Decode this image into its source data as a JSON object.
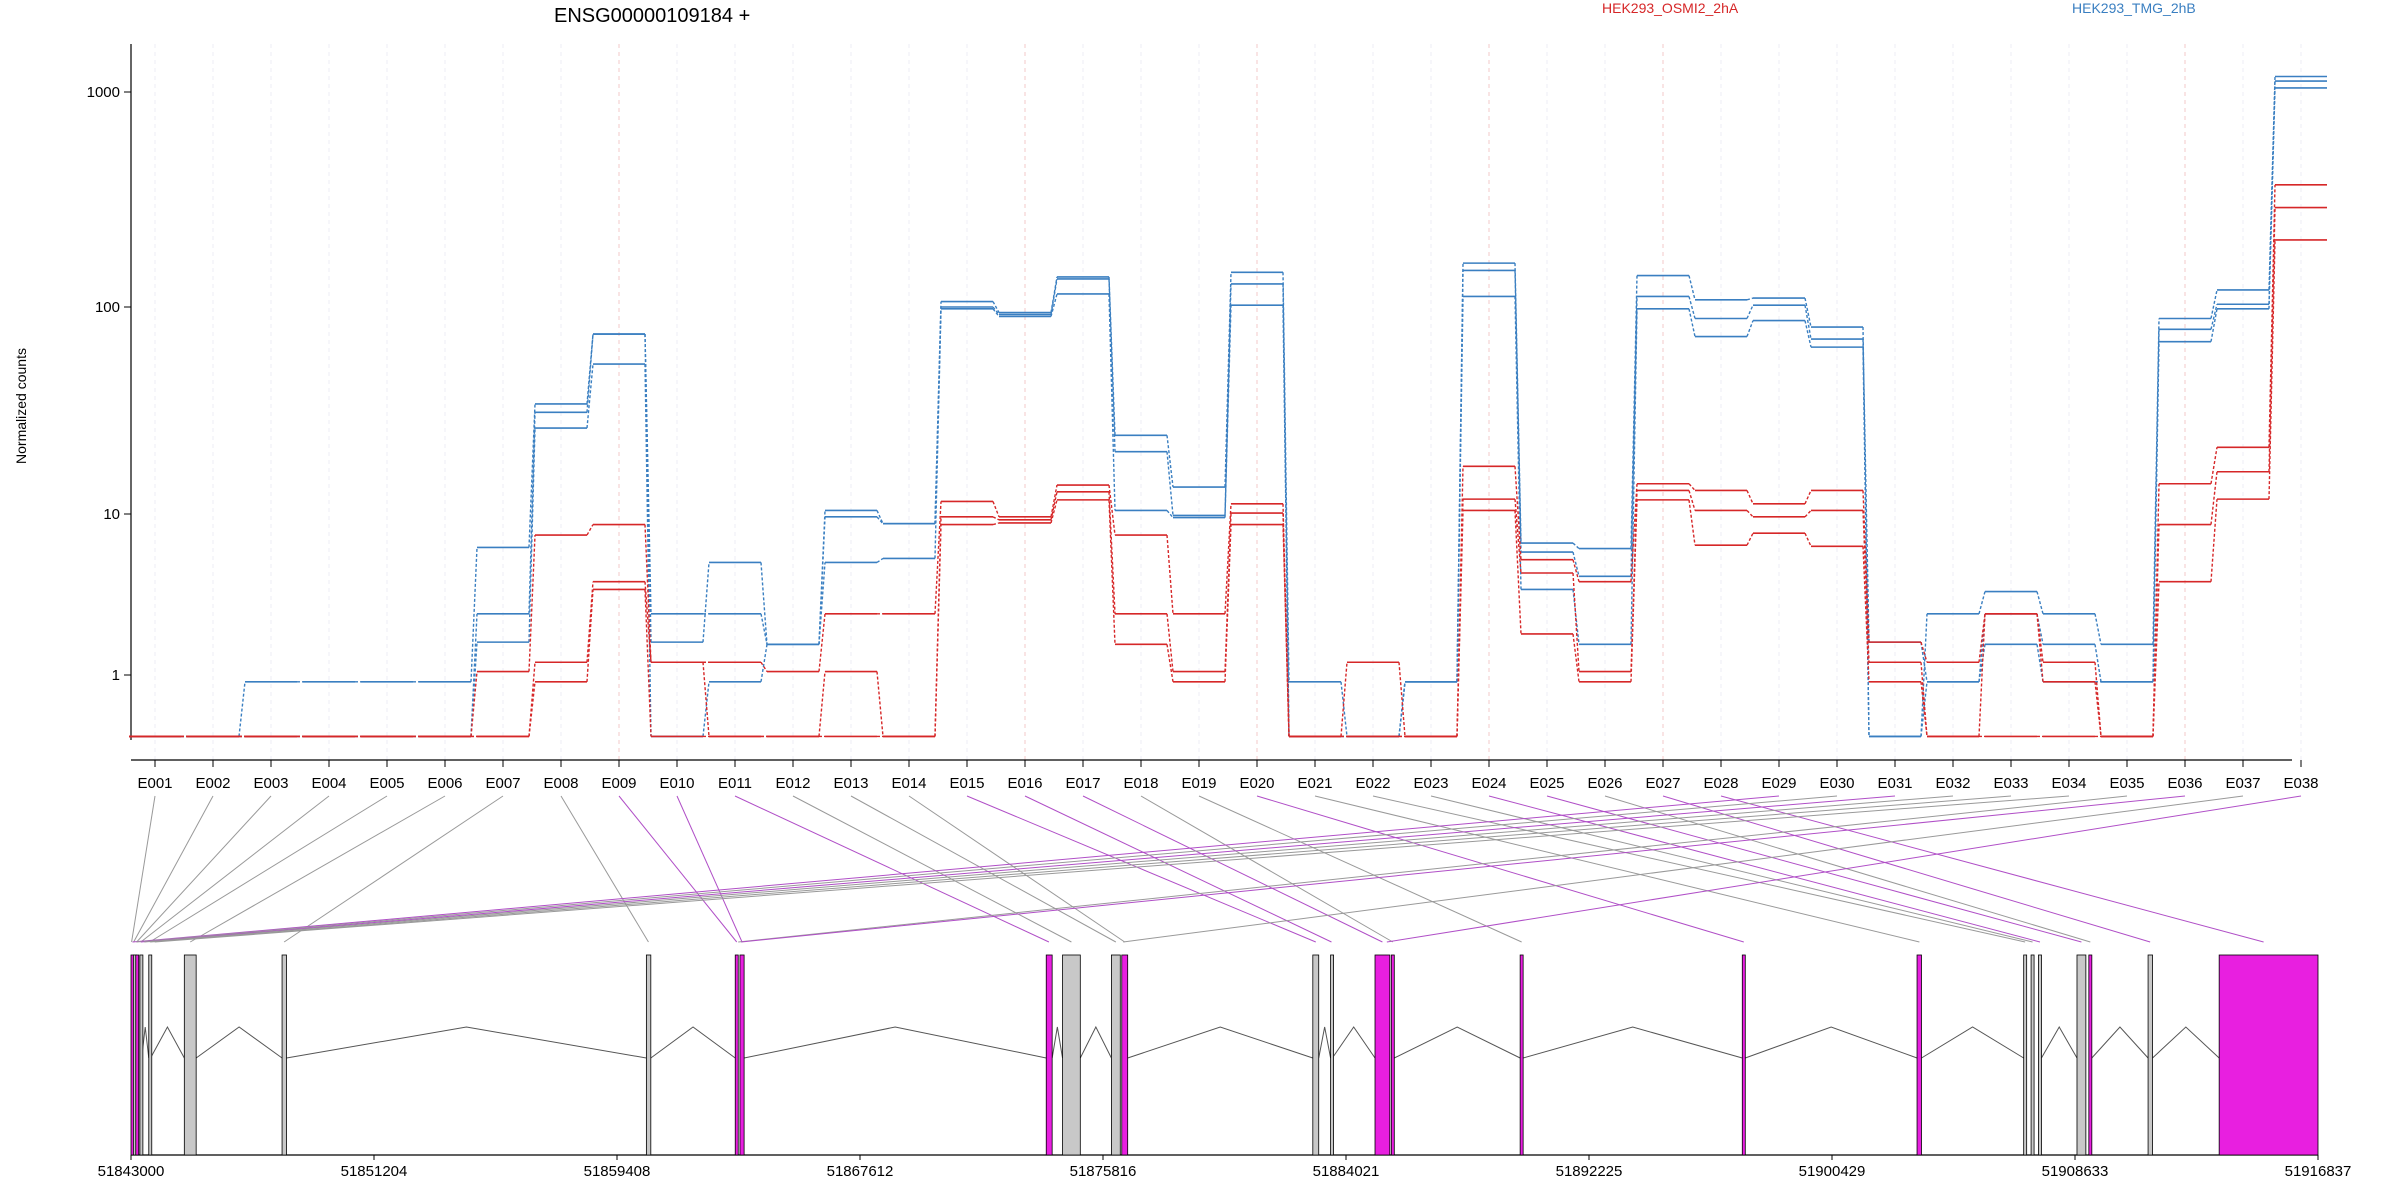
{
  "title": "ENSG00000109184 +",
  "legend": [
    {
      "name": "HEK293_OSMI2_2hA",
      "color": "#d62728"
    },
    {
      "name": "HEK293_TMG_2hB",
      "color": "#3a7fc1"
    }
  ],
  "colors": {
    "exon_highlight": "#e81fe0",
    "exon_plain": "#c8c8c8",
    "guide": "#999999"
  },
  "chart_data": {
    "type": "line",
    "title": "ENSG00000109184 +",
    "ylabel": "Normalized counts",
    "yscale": "log",
    "yticks": [
      "1000",
      "100",
      "10",
      "1"
    ],
    "ylim": [
      0.45,
      1500
    ],
    "x": [
      "E001",
      "E002",
      "E003",
      "E004",
      "E005",
      "E006",
      "E007",
      "E008",
      "E009",
      "E010",
      "E011",
      "E012",
      "E013",
      "E014",
      "E015",
      "E016",
      "E017",
      "E018",
      "E019",
      "E020",
      "E021",
      "E022",
      "E023",
      "E024",
      "E025",
      "E026",
      "E027",
      "E028",
      "E029",
      "E030",
      "E031",
      "E032",
      "E033",
      "E034",
      "E035",
      "E036",
      "E037",
      "E038"
    ],
    "series": [
      {
        "group": "HEK293_TMG_2hB",
        "color": "#3a7fc1",
        "values": [
          0.47,
          0.47,
          0.92,
          0.92,
          0.92,
          0.92,
          6.2,
          34,
          74,
          1.6,
          5,
          1.55,
          10.4,
          8.7,
          106,
          94,
          138,
          24,
          13.5,
          145,
          0.92,
          0.47,
          0.92,
          160,
          6.6,
          6.1,
          140,
          108,
          110,
          80,
          0.47,
          2.4,
          3.3,
          2.4,
          1.55,
          88,
          120,
          1250
        ]
      },
      {
        "group": "HEK293_TMG_2hB",
        "color": "#3a7fc1",
        "values": [
          0.47,
          0.47,
          0.47,
          0.47,
          0.47,
          0.47,
          2.4,
          31,
          74,
          2.4,
          2.4,
          1.55,
          9.6,
          8.7,
          100,
          92,
          135,
          20,
          9.8,
          128,
          0.47,
          0.47,
          0.92,
          148,
          5.8,
          4.1,
          112,
          88,
          102,
          70,
          1.6,
          0.92,
          2.4,
          1.55,
          0.92,
          78,
          103,
          1170
        ]
      },
      {
        "group": "HEK293_TMG_2hB",
        "color": "#3a7fc1",
        "values": [
          0.47,
          0.47,
          0.47,
          0.47,
          0.47,
          0.47,
          1.6,
          26,
          53,
          0.47,
          0.92,
          1.55,
          5,
          5.3,
          98,
          90,
          115,
          10.4,
          9.5,
          102,
          0.47,
          0.47,
          0.92,
          112,
          3.4,
          1.55,
          98,
          72,
          86,
          64,
          0.47,
          0.92,
          1.55,
          0.92,
          0.92,
          68,
          98,
          1060
        ]
      },
      {
        "group": "HEK293_OSMI2_2hA",
        "color": "#d62728",
        "values": [
          0.47,
          0.47,
          0.47,
          0.47,
          0.47,
          0.47,
          1.05,
          7.4,
          8.6,
          1.2,
          1.2,
          1.05,
          2.4,
          2.4,
          11.5,
          9.6,
          13.8,
          7.4,
          2.4,
          11.2,
          0.47,
          1.2,
          0.47,
          17,
          5.2,
          3.8,
          14,
          13,
          11.2,
          13,
          1.6,
          1.2,
          2.4,
          1.2,
          0.47,
          14,
          21,
          370
        ]
      },
      {
        "group": "HEK293_OSMI2_2hA",
        "color": "#d62728",
        "values": [
          0.47,
          0.47,
          0.47,
          0.47,
          0.47,
          0.47,
          0.47,
          1.2,
          3.8,
          1.2,
          0.47,
          0.47,
          1.05,
          0.47,
          9.6,
          9.2,
          12.8,
          2.4,
          1.05,
          10.1,
          0.47,
          0.47,
          0.47,
          11.8,
          4.3,
          1.05,
          13,
          10.4,
          9.6,
          10.4,
          1.2,
          0.47,
          2.4,
          0.92,
          0.47,
          8.6,
          16,
          290
        ]
      },
      {
        "group": "HEK293_OSMI2_2hA",
        "color": "#d62728",
        "values": [
          0.47,
          0.47,
          0.47,
          0.47,
          0.47,
          0.47,
          0.47,
          0.92,
          3.4,
          0.47,
          0.47,
          0.47,
          0.47,
          0.47,
          8.6,
          8.8,
          11.7,
          1.55,
          0.92,
          8.6,
          0.47,
          0.47,
          0.47,
          10.4,
          1.8,
          0.92,
          11.7,
          6.4,
          7.6,
          6.3,
          0.92,
          0.47,
          0.47,
          0.47,
          0.47,
          3.8,
          11.8,
          205
        ]
      }
    ]
  },
  "gene_model": {
    "coord_labels": [
      "51843000",
      "51851204",
      "51859408",
      "51867612",
      "51875816",
      "51884021",
      "51892225",
      "51900429",
      "51908633",
      "51916837"
    ],
    "coord_range": [
      51843000,
      51916837
    ],
    "exons": [
      {
        "start": 51843000,
        "end": 51843060,
        "highlight": true
      },
      {
        "start": 51843080,
        "end": 51843140,
        "highlight": false
      },
      {
        "start": 51843160,
        "end": 51843220,
        "highlight": true
      },
      {
        "start": 51843300,
        "end": 51843360,
        "highlight": false
      },
      {
        "start": 51843600,
        "end": 51843660,
        "highlight": false
      },
      {
        "start": 51844800,
        "end": 51845200,
        "highlight": false
      },
      {
        "start": 51848100,
        "end": 51848250,
        "highlight": false
      },
      {
        "start": 51860400,
        "end": 51860550,
        "highlight": false
      },
      {
        "start": 51863400,
        "end": 51863500,
        "highlight": true
      },
      {
        "start": 51863560,
        "end": 51863700,
        "highlight": true
      },
      {
        "start": 51873900,
        "end": 51874100,
        "highlight": true
      },
      {
        "start": 51874450,
        "end": 51875050,
        "highlight": false
      },
      {
        "start": 51876100,
        "end": 51876400,
        "highlight": false
      },
      {
        "start": 51876450,
        "end": 51876650,
        "highlight": true
      },
      {
        "start": 51882900,
        "end": 51883100,
        "highlight": false
      },
      {
        "start": 51883500,
        "end": 51883560,
        "highlight": false
      },
      {
        "start": 51885000,
        "end": 51885500,
        "highlight": true
      },
      {
        "start": 51885550,
        "end": 51885650,
        "highlight": true
      },
      {
        "start": 51889900,
        "end": 51890000,
        "highlight": true
      },
      {
        "start": 51897400,
        "end": 51897500,
        "highlight": true
      },
      {
        "start": 51903300,
        "end": 51903450,
        "highlight": true
      },
      {
        "start": 51906900,
        "end": 51907000,
        "highlight": false
      },
      {
        "start": 51907150,
        "end": 51907250,
        "highlight": false
      },
      {
        "start": 51907400,
        "end": 51907500,
        "highlight": false
      },
      {
        "start": 51908700,
        "end": 51909000,
        "highlight": false
      },
      {
        "start": 51909100,
        "end": 51909200,
        "highlight": true
      },
      {
        "start": 51911100,
        "end": 51911250,
        "highlight": false
      },
      {
        "start": 51913500,
        "end": 51916837,
        "highlight": true
      }
    ],
    "bin_targets": [
      51843020,
      51843090,
      51843190,
      51843330,
      51843630,
      51845000,
      51848170,
      51860470,
      51863450,
      51863630,
      51873990,
      51874750,
      51876250,
      51876550,
      51883000,
      51883530,
      51885250,
      51885600,
      51889950,
      51897450,
      51903380,
      51906950,
      51907200,
      51907450,
      51908850,
      51909150,
      51911170,
      51915000,
      51843050,
      51843180,
      51843330,
      51843450,
      51843650,
      51843800,
      51863500,
      51863600,
      51876500,
      51885400
    ]
  }
}
